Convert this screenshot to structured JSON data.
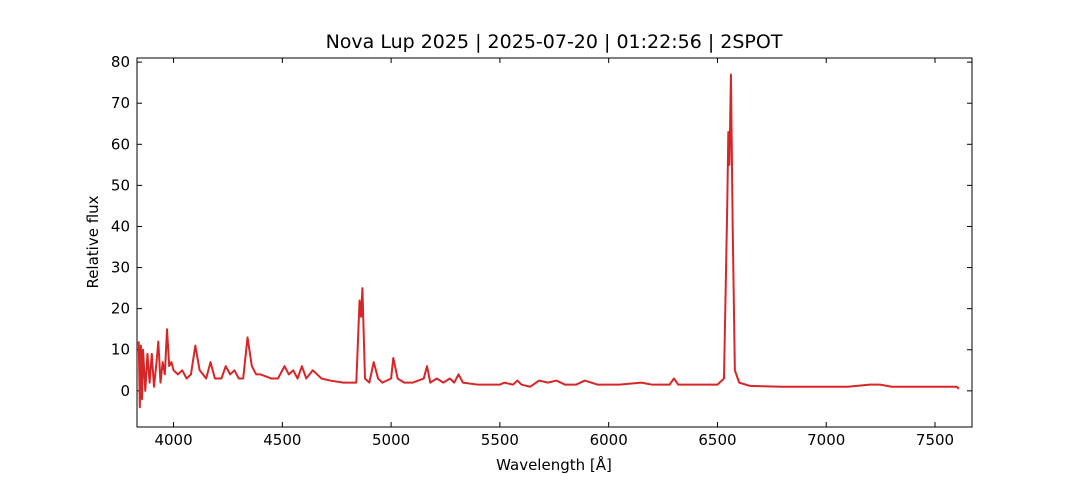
{
  "chart_data": {
    "type": "line",
    "title": "Nova Lup 2025 | 2025-07-20 | 01:22:56 | 2SPOT",
    "x_label": "Wavelength [Å]",
    "y_label": "Relative flux",
    "color": "#d62728",
    "x": [
      3840,
      3845,
      3850,
      3855,
      3860,
      3870,
      3880,
      3890,
      3900,
      3910,
      3920,
      3930,
      3940,
      3950,
      3960,
      3970,
      3980,
      3990,
      4000,
      4020,
      4040,
      4060,
      4080,
      4100,
      4120,
      4150,
      4170,
      4190,
      4220,
      4240,
      4260,
      4280,
      4300,
      4320,
      4340,
      4360,
      4380,
      4400,
      4450,
      4480,
      4510,
      4530,
      4550,
      4570,
      4590,
      4610,
      4640,
      4680,
      4720,
      4780,
      4840,
      4855,
      4862,
      4868,
      4880,
      4900,
      4920,
      4940,
      4960,
      5000,
      5010,
      5030,
      5060,
      5100,
      5150,
      5165,
      5180,
      5210,
      5240,
      5270,
      5290,
      5310,
      5330,
      5400,
      5500,
      5520,
      5560,
      5580,
      5600,
      5640,
      5680,
      5720,
      5760,
      5800,
      5850,
      5890,
      5950,
      6050,
      6150,
      6200,
      6280,
      6300,
      6320,
      6400,
      6500,
      6530,
      6545,
      6550,
      6555,
      6562,
      6570,
      6580,
      6600,
      6650,
      6800,
      7000,
      7100,
      7200,
      7250,
      7300,
      7500,
      7600,
      7610
    ],
    "values": [
      12,
      -4,
      11,
      -2,
      10,
      0,
      9,
      2,
      9,
      1,
      6,
      12,
      2,
      7,
      4,
      15,
      6,
      7,
      5,
      4,
      5,
      3,
      4,
      11,
      5,
      3,
      7,
      3,
      3,
      6,
      4,
      5,
      3,
      3,
      13,
      6,
      4,
      4,
      3,
      3,
      6,
      4,
      5,
      3,
      6,
      3,
      5,
      3,
      2.5,
      2,
      2,
      22,
      18,
      25,
      3,
      2,
      7,
      3,
      2,
      3,
      8,
      3,
      2,
      2,
      3,
      6,
      2,
      3,
      2,
      3,
      2,
      4,
      2,
      1.5,
      1.5,
      2,
      1.5,
      2.5,
      1.5,
      1,
      2.5,
      2,
      2.5,
      1.5,
      1.5,
      2.5,
      1.5,
      1.5,
      2,
      1.5,
      1.5,
      3,
      1.5,
      1.5,
      1.5,
      3,
      45,
      63,
      55,
      77,
      40,
      5,
      2,
      1.2,
      1,
      1,
      1,
      1.5,
      1.5,
      1,
      1,
      1,
      0.5
    ],
    "xlim": [
      3832,
      7670
    ],
    "ylim": [
      -8.8,
      81
    ],
    "xticks": [
      4000,
      4500,
      5000,
      5500,
      6000,
      6500,
      7000,
      7500
    ],
    "yticks": [
      0,
      10,
      20,
      30,
      40,
      50,
      60,
      70,
      80
    ]
  }
}
